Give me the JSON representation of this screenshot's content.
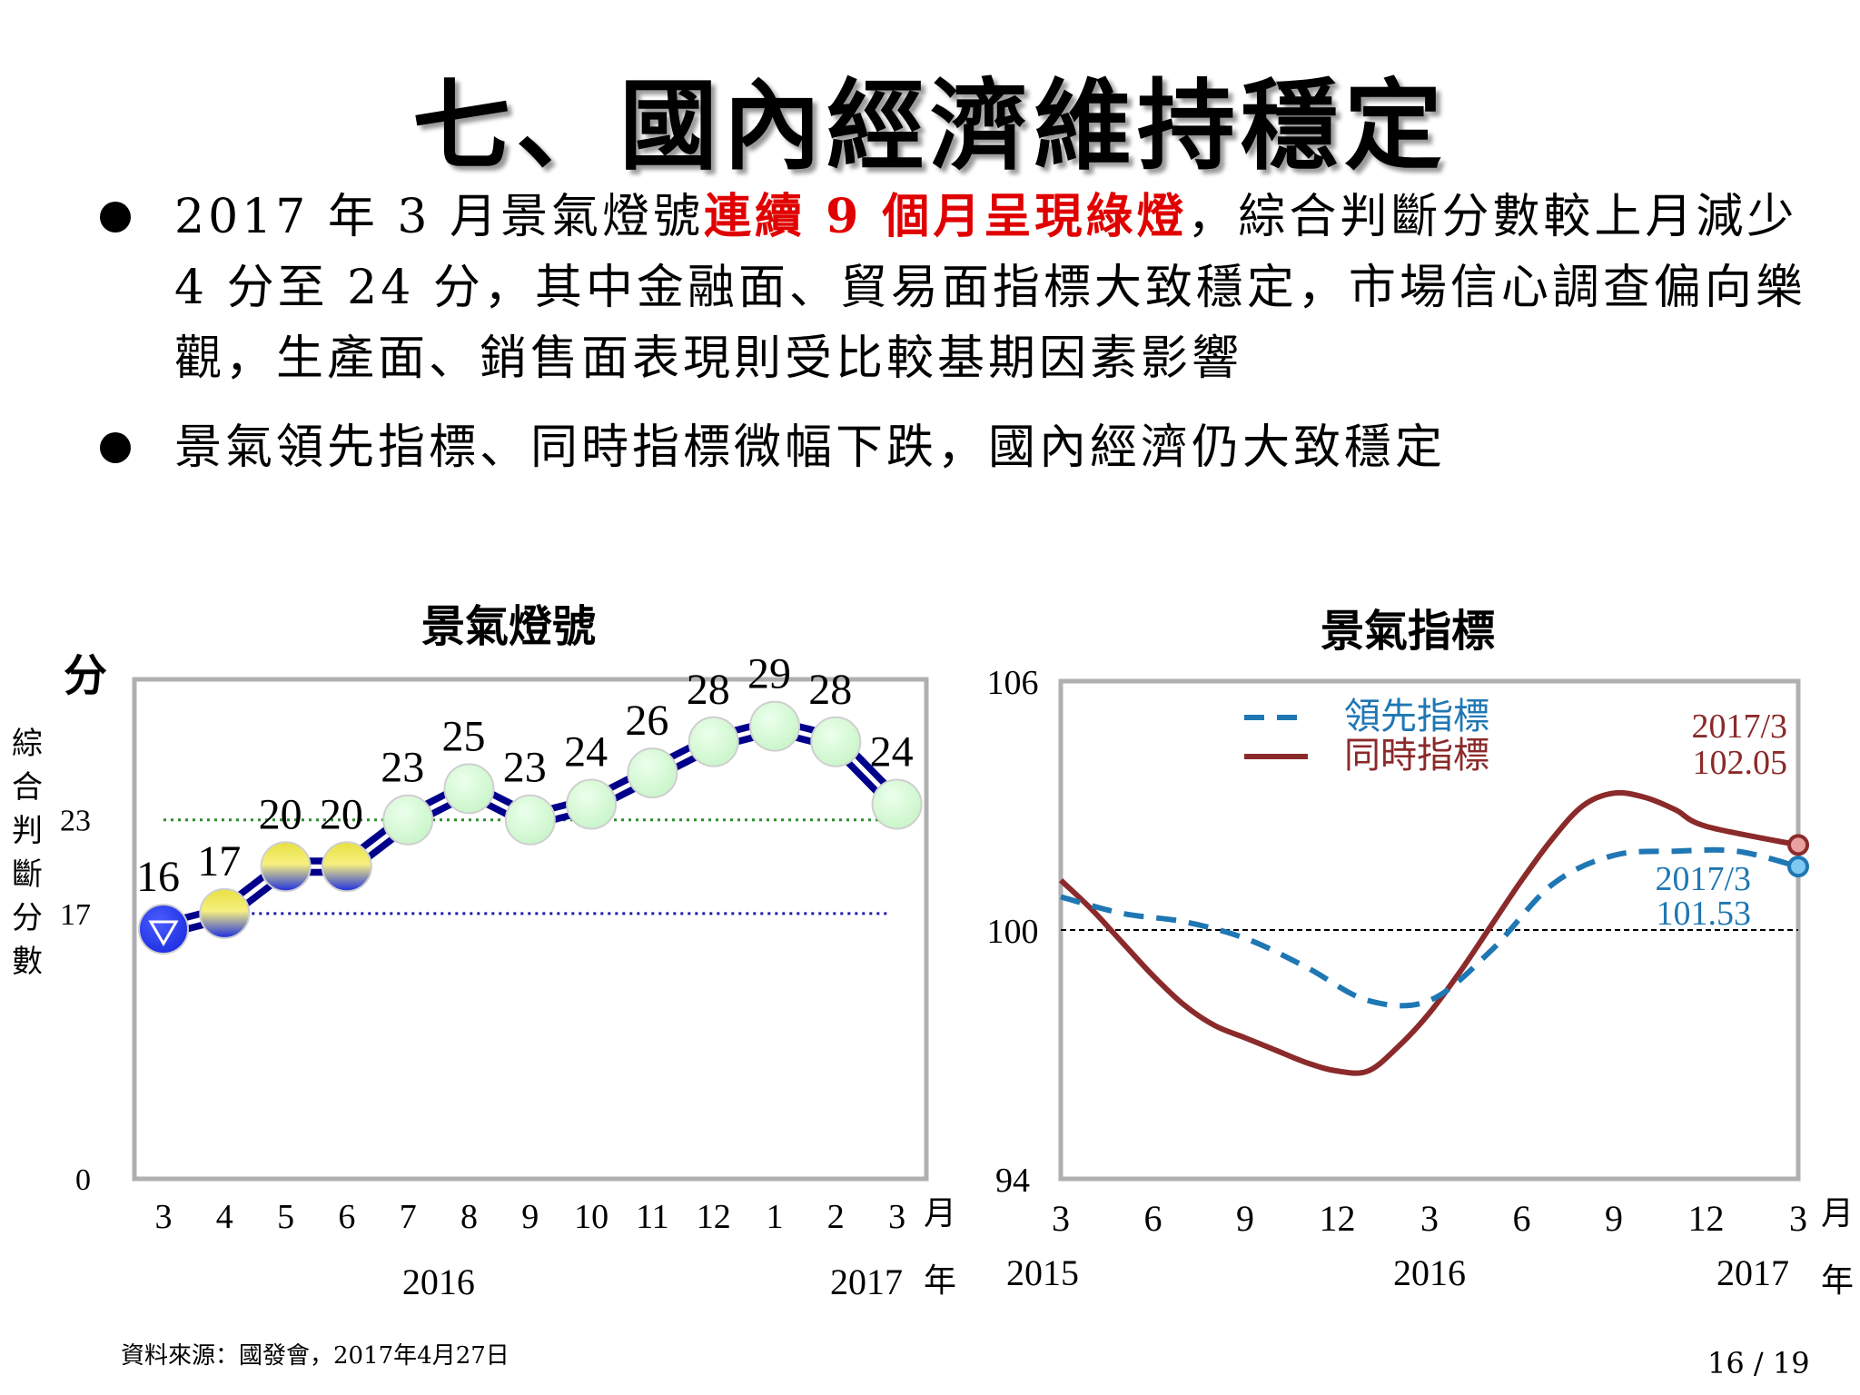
{
  "title": "七、國內經濟維持穩定",
  "bullets": [
    {
      "before": "2017 年 3 月景氣燈號",
      "highlight": "連續 9 個月呈現綠燈",
      "after": "，綜合判斷分數較上月減少 4 分至 24 分，其中金融面、貿易面指標大致穩定，市場信心調查偏向樂觀，生產面、銷售面表現則受比較基期因素影響"
    },
    {
      "before": "景氣領先指標、同時指標微幅下跌，國內經濟仍大致穩定",
      "highlight": "",
      "after": ""
    }
  ],
  "colors": {
    "highlight": "#e00000",
    "signal_line": "#00008b",
    "green_light": "#c8f5c8",
    "yellow_blue_light": "#e8e040",
    "blue_light": "#1c2ee0",
    "leading": "#1f77b4",
    "coincident": "#8b2a2a",
    "green_threshold": "#2e8b2e",
    "blue_threshold": "#1a1ab0"
  },
  "source": "資料來源：國發會，2017年4月27日",
  "page": "16 / 19",
  "chart_data": [
    {
      "type": "line",
      "title": "景氣燈號",
      "ylabel_unit": "分",
      "ylabel": "綜合判斷分數",
      "x_unit": "月",
      "year_unit": "年",
      "categories": [
        "3",
        "4",
        "5",
        "6",
        "7",
        "8",
        "9",
        "10",
        "11",
        "12",
        "1",
        "2",
        "3"
      ],
      "year_labels": [
        {
          "label": "2016",
          "month_index": 4.5
        },
        {
          "label": "2017",
          "month_index": 11.5
        }
      ],
      "values": [
        16,
        17,
        20,
        20,
        23,
        25,
        23,
        24,
        26,
        28,
        29,
        28,
        24
      ],
      "light_colors": [
        "blue",
        "yellow-blue",
        "yellow-blue",
        "yellow-blue",
        "green",
        "green",
        "green",
        "green",
        "green",
        "green",
        "green",
        "green",
        "green"
      ],
      "yticks": [
        0,
        17,
        23
      ],
      "ylim": [
        0,
        32
      ],
      "thresholds": [
        {
          "value": 23,
          "color": "green"
        },
        {
          "value": 17,
          "color": "blue"
        }
      ]
    },
    {
      "type": "line",
      "title": "景氣指標",
      "x_unit": "月",
      "year_unit": "年",
      "ylim": [
        94,
        106
      ],
      "yticks": [
        94,
        100,
        106
      ],
      "reference_line": 100,
      "xticks": [
        "3",
        "6",
        "9",
        "12",
        "3",
        "6",
        "9",
        "12",
        "3"
      ],
      "year_labels": [
        {
          "label": "2015",
          "month_index": 0
        },
        {
          "label": "2016",
          "month_index": 12
        },
        {
          "label": "2017",
          "month_index": 24
        }
      ],
      "series": [
        {
          "name": "領先指標",
          "style": "dashed",
          "x": [
            0,
            2,
            4,
            6,
            8,
            10,
            12,
            14,
            16,
            18,
            20,
            22,
            24
          ],
          "values": [
            100.8,
            100.4,
            100.2,
            99.8,
            99.1,
            98.3,
            98.3,
            99.5,
            101.1,
            101.8,
            101.9,
            101.9,
            101.53
          ]
        },
        {
          "name": "同時指標",
          "style": "solid",
          "x": [
            0,
            1,
            2,
            3,
            4,
            5,
            6,
            7,
            8,
            9,
            10,
            11,
            12,
            13,
            14,
            15,
            16,
            17,
            18,
            19,
            20,
            21,
            22,
            23,
            24
          ],
          "values": [
            101.2,
            100.5,
            99.7,
            98.9,
            98.2,
            97.7,
            97.4,
            97.1,
            96.8,
            96.6,
            96.6,
            97.2,
            98.0,
            99.0,
            100.1,
            101.2,
            102.2,
            103.0,
            103.3,
            103.2,
            102.9,
            102.5,
            102.05,
            102.05,
            102.05
          ]
        }
      ],
      "annotations": [
        {
          "series": "同時指標",
          "label_date": "2017/3",
          "label_value": "102.05"
        },
        {
          "series": "領先指標",
          "label_date": "2017/3",
          "label_value": "101.53"
        }
      ]
    }
  ]
}
